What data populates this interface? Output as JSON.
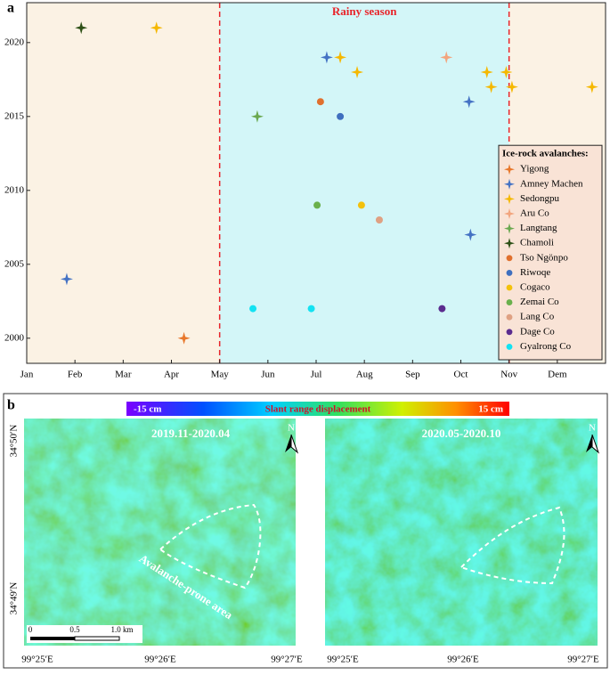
{
  "chart_data": {
    "type": "scatter",
    "panel_label": "a",
    "legend_title": "Ice-rock avalanches:",
    "legend": "lower right",
    "xlim": [
      0,
      12
    ],
    "ylim": [
      1998.3,
      2022.7
    ],
    "xticks": [
      {
        "value": 0,
        "label": "Jan"
      },
      {
        "value": 1,
        "label": "Feb"
      },
      {
        "value": 2,
        "label": "Mar"
      },
      {
        "value": 3,
        "label": "Apr"
      },
      {
        "value": 4,
        "label": "May"
      },
      {
        "value": 5,
        "label": "Jun"
      },
      {
        "value": 6,
        "label": "Jul"
      },
      {
        "value": 7,
        "label": "Aug"
      },
      {
        "value": 8,
        "label": "Sep"
      },
      {
        "value": 9,
        "label": "Oct"
      },
      {
        "value": 10,
        "label": "Nov"
      },
      {
        "value": 11,
        "label": "Dem"
      }
    ],
    "yticks": [
      2000,
      2005,
      2010,
      2015,
      2020
    ],
    "rainy_season": {
      "label": "Rainy season",
      "range": [
        4,
        10
      ],
      "color": "#e8242a",
      "fill": "#d3f6f8"
    },
    "background": "#fbf2e4",
    "series": [
      {
        "name": "Yigong",
        "color": "#e8772a",
        "marker": "star",
        "x": [
          3.26
        ],
        "values": [
          2000
        ]
      },
      {
        "name": "Amney Machen",
        "color": "#4472c4",
        "marker": "star",
        "x": [
          0.83,
          6.22,
          9.17,
          9.2
        ],
        "values": [
          2004,
          2019,
          2016,
          2007
        ]
      },
      {
        "name": "Sedongpu",
        "color": "#f5b800",
        "marker": "star",
        "x": [
          2.69,
          6.5,
          6.85,
          9.54,
          9.63,
          9.94,
          10.06,
          11.72
        ],
        "values": [
          2021,
          2019,
          2018,
          2018,
          2017,
          2018,
          2017,
          2017
        ]
      },
      {
        "name": "Aru Co",
        "color": "#f2a57e",
        "marker": "star",
        "x": [
          8.7
        ],
        "values": [
          2019
        ]
      },
      {
        "name": "Langtang",
        "color": "#6aa84f",
        "marker": "star",
        "x": [
          4.78
        ],
        "values": [
          2015
        ]
      },
      {
        "name": "Chamoli",
        "color": "#2d5016",
        "marker": "star",
        "x": [
          1.13
        ],
        "values": [
          2021
        ]
      },
      {
        "name": "Tso Ngönpo",
        "color": "#e0702e",
        "marker": "circle",
        "x": [
          6.09
        ],
        "values": [
          2016
        ]
      },
      {
        "name": "Riwoqe",
        "color": "#3f6fbf",
        "marker": "circle",
        "x": [
          6.5
        ],
        "values": [
          2015
        ]
      },
      {
        "name": "Cogaco",
        "color": "#f3c10c",
        "marker": "circle",
        "x": [
          6.94
        ],
        "values": [
          2009
        ]
      },
      {
        "name": "Zemai Co",
        "color": "#6ab04c",
        "marker": "circle",
        "x": [
          6.02
        ],
        "values": [
          2009
        ]
      },
      {
        "name": "Lang Co",
        "color": "#dfa183",
        "marker": "circle",
        "x": [
          7.31
        ],
        "values": [
          2008
        ]
      },
      {
        "name": "Dage Co",
        "color": "#5b2c8f",
        "marker": "circle",
        "x": [
          8.61
        ],
        "values": [
          2002
        ]
      },
      {
        "name": "Gyalrong Co",
        "color": "#13e2f2",
        "marker": "circle",
        "x": [
          4.69,
          5.9
        ],
        "values": [
          2002,
          2002
        ]
      }
    ]
  },
  "panel_b": {
    "label": "b",
    "colorbar": {
      "min_label": "-15 cm",
      "title": "Slant range displacement",
      "max_label": "15 cm"
    },
    "maps": [
      {
        "title": "2019.11-2020.04",
        "annotation": "Avalanche-prone area",
        "north": "N",
        "x_labels": [
          "99°25′E",
          "99°26′E",
          "99°27′E"
        ],
        "y_labels": [
          "34°50′N",
          "34°49′N"
        ],
        "scale_bar": [
          "0",
          "0.5",
          "1.0 km"
        ]
      },
      {
        "title": "2020.05-2020.10",
        "north": "N",
        "x_labels": [
          "99°25′E",
          "99°26′E",
          "99°27′E"
        ]
      }
    ]
  }
}
